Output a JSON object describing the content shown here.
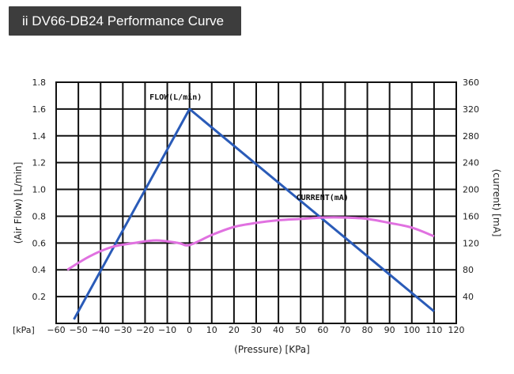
{
  "chart_data": {
    "type": "line",
    "title": "ii DV66-DB24 Performance Curve",
    "xlabel": "(Pressure) [KPa]",
    "x_unit_label": "[kPa]",
    "ylabel_left": "(Air Flow) [L/min]",
    "ylabel_right": "(current) [mA]",
    "xlim": [
      -60,
      120
    ],
    "ylim_left": [
      0,
      1.8
    ],
    "ylim_right": [
      0,
      360
    ],
    "x_ticks": [
      -60,
      -50,
      -40,
      -30,
      -20,
      -10,
      0,
      10,
      20,
      30,
      40,
      50,
      60,
      70,
      80,
      90,
      100,
      110,
      120
    ],
    "x_tick_labels": [
      "−60",
      "−50",
      "−40",
      "−30",
      "−20",
      "−10",
      "0",
      "10",
      "20",
      "30",
      "40",
      "50",
      "60",
      "70",
      "80",
      "90",
      "100",
      "110",
      "120"
    ],
    "y_left_ticks": [
      0.2,
      0.4,
      0.6,
      0.8,
      1.0,
      1.2,
      1.4,
      1.6,
      1.8
    ],
    "y_left_tick_labels": [
      "0.2",
      "0.4",
      "0.6",
      "0.8",
      "1.0",
      "1.2",
      "1.4",
      "1.6",
      "1.8"
    ],
    "y_right_ticks": [
      40,
      80,
      120,
      160,
      200,
      240,
      280,
      320,
      360
    ],
    "y_right_tick_labels": [
      "40",
      "80",
      "120",
      "160",
      "200",
      "240",
      "280",
      "320",
      "360"
    ],
    "grid": true,
    "series": [
      {
        "name": "FLOW(L/min)",
        "axis": "left",
        "color": "#2a5bb8",
        "x": [
          -52,
          0,
          110
        ],
        "y": [
          0.03,
          1.6,
          0.09
        ]
      },
      {
        "name": "CURRENT(mA)",
        "axis": "right",
        "color": "#e071e0",
        "x": [
          -55,
          -45,
          -35,
          -25,
          -15,
          -5,
          0,
          10,
          20,
          30,
          40,
          50,
          60,
          70,
          80,
          90,
          100,
          110
        ],
        "y": [
          80,
          100,
          114,
          120,
          124,
          120,
          117,
          132,
          144,
          150,
          154,
          156,
          158,
          158,
          156,
          150,
          143,
          130
        ]
      }
    ],
    "annotations": [
      {
        "text": "FLOW(L/min)",
        "series": "FLOW(L/min)"
      },
      {
        "text": "CURRENT(mA)",
        "series": "CURRENT(mA)"
      }
    ]
  }
}
